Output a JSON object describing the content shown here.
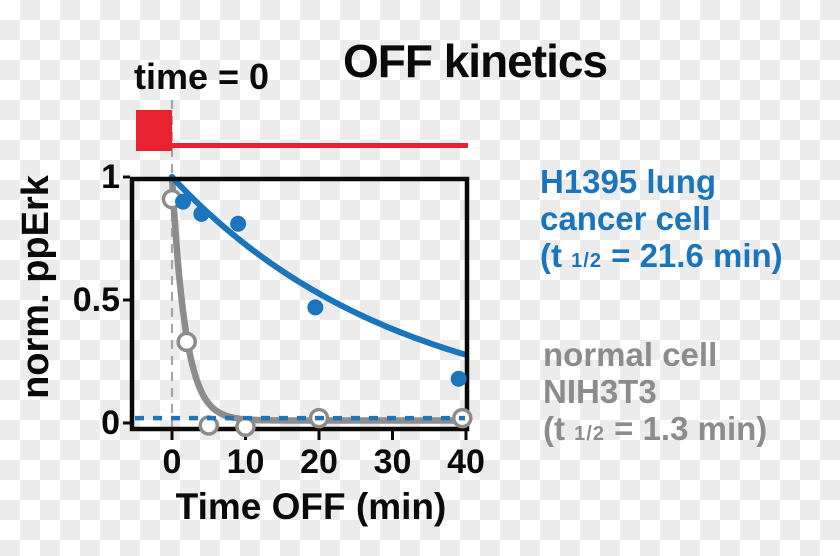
{
  "figure": {
    "title": "OFF kinetics",
    "stimulus_label": "time = 0",
    "colors": {
      "blue": "#1b75bc",
      "gray": "#8c8c8c",
      "red": "#e8232f",
      "black": "#0a0a0a",
      "dashed_gray": "#a6a6a6",
      "checker_gray": "#ececec"
    }
  },
  "legend": {
    "cancer": {
      "line1": "H1395 lung",
      "line2": "cancer cell",
      "thalf_open": "(t ",
      "thalf_sub": "1/2",
      "thalf_close": " = 21.6 min)"
    },
    "normal": {
      "line1": "normal cell",
      "line2": "NIH3T3",
      "thalf_open": "(t ",
      "thalf_sub": "1/2",
      "thalf_close": " = 1.3 min)"
    }
  },
  "chart_data": {
    "type": "scatter",
    "title": "OFF kinetics",
    "xlabel": "Time OFF (min)",
    "ylabel": "norm. ppErk",
    "xlim": [
      -5.7,
      40.1
    ],
    "ylim": [
      -0.03,
      1.0
    ],
    "xticks": [
      0,
      10,
      20,
      30,
      40
    ],
    "xtick_labels": [
      "0",
      "10",
      "20",
      "30",
      "40"
    ],
    "yticks": [
      0,
      0.5,
      1
    ],
    "ytick_labels": [
      "0",
      "0.5",
      "1"
    ],
    "grid": false,
    "baseline_dashed_y": 0.02,
    "time_zero_line_x": 0,
    "stimulus_bar": {
      "label": "time = 0",
      "on_until_x": 0,
      "off_until_x": 40
    },
    "series": [
      {
        "name": "H1395 lung cancer cell",
        "t_half_min": 21.6,
        "color": "#1b75bc",
        "marker": "filled-circle",
        "points_x": [
          1.5,
          4,
          9,
          19.5,
          39
        ],
        "points_y": [
          0.9,
          0.85,
          0.81,
          0.47,
          0.18
        ],
        "fit": {
          "model": "exponential_decay",
          "y0": 1.0,
          "plateau": 0.0,
          "t_half": 21.6
        }
      },
      {
        "name": "normal cell NIH3T3",
        "t_half_min": 1.3,
        "color": "#8c8c8c",
        "marker": "open-circle",
        "points_x": [
          0,
          2,
          5,
          10,
          20,
          39.5
        ],
        "points_y": [
          0.91,
          0.33,
          -0.01,
          -0.015,
          0.02,
          0.02
        ],
        "fit": {
          "model": "exponential_decay",
          "y0": 1.0,
          "plateau": 0.01,
          "t_half": 1.3
        }
      }
    ]
  }
}
